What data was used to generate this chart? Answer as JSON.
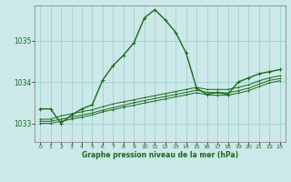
{
  "title": "Graphe pression niveau de la mer (hPa)",
  "background_color": "#cce8e8",
  "grid_color": "#99cccc",
  "line_color": "#1a6b1a",
  "x_ticks": [
    0,
    1,
    2,
    3,
    4,
    5,
    6,
    7,
    8,
    9,
    10,
    11,
    12,
    13,
    14,
    15,
    16,
    17,
    18,
    19,
    20,
    21,
    22,
    23
  ],
  "y_ticks": [
    1033,
    1034,
    1035
  ],
  "ylim": [
    1032.55,
    1035.85
  ],
  "xlim": [
    -0.5,
    23.5
  ],
  "series": [
    [
      1033.35,
      1033.35,
      1033.0,
      1033.2,
      1033.35,
      1033.45,
      1034.05,
      1034.4,
      1034.65,
      1034.95,
      1035.55,
      1035.75,
      1035.5,
      1035.2,
      1034.7,
      1033.85,
      1033.7,
      1033.75,
      1033.7,
      1034.0,
      1034.1,
      1034.2,
      1034.25,
      1034.3
    ],
    [
      1033.1,
      1033.1,
      1033.18,
      1033.23,
      1033.28,
      1033.33,
      1033.4,
      1033.47,
      1033.52,
      1033.57,
      1033.62,
      1033.67,
      1033.72,
      1033.77,
      1033.82,
      1033.87,
      1033.82,
      1033.82,
      1033.82,
      1033.87,
      1033.93,
      1034.03,
      1034.1,
      1034.15
    ],
    [
      1033.05,
      1033.05,
      1033.1,
      1033.15,
      1033.2,
      1033.25,
      1033.32,
      1033.38,
      1033.44,
      1033.5,
      1033.55,
      1033.6,
      1033.65,
      1033.7,
      1033.75,
      1033.8,
      1033.75,
      1033.74,
      1033.74,
      1033.79,
      1033.85,
      1033.95,
      1034.04,
      1034.08
    ],
    [
      1033.0,
      1033.0,
      1033.05,
      1033.1,
      1033.15,
      1033.2,
      1033.28,
      1033.33,
      1033.39,
      1033.44,
      1033.49,
      1033.54,
      1033.59,
      1033.64,
      1033.69,
      1033.74,
      1033.69,
      1033.68,
      1033.68,
      1033.73,
      1033.79,
      1033.89,
      1033.98,
      1034.03
    ]
  ]
}
